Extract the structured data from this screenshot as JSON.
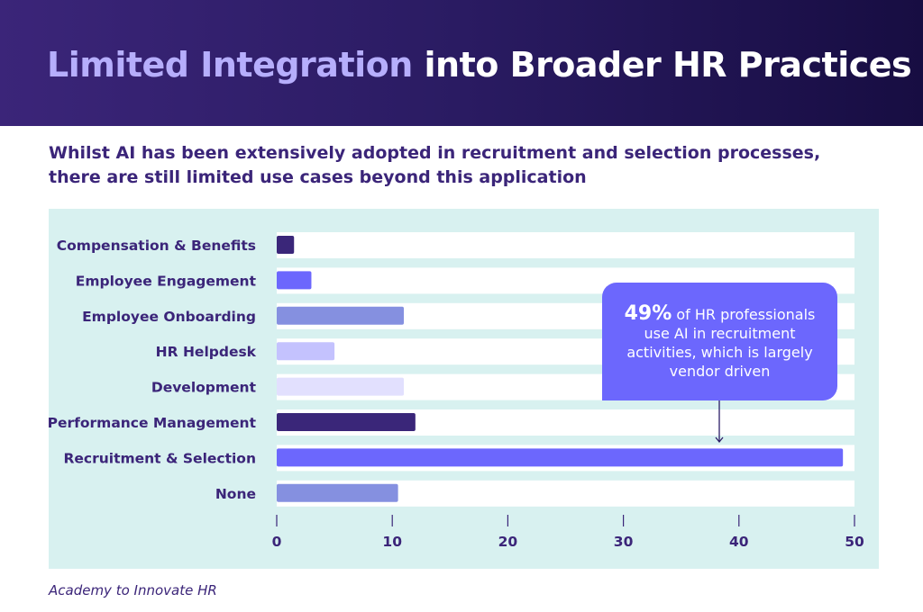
{
  "header": {
    "title_highlight": "Limited Integration",
    "title_rest": " into Broader HR Practices"
  },
  "subtitle_line1": "Whilst AI has been extensively adopted in recruitment and selection processes,",
  "subtitle_line2": "there are still limited use cases beyond this application",
  "source": "Academy to Innovate HR",
  "callout": {
    "value": "49%",
    "line1": " of HR professionals",
    "line2": "use AI in recruitment",
    "line3": "activities, which is largely",
    "line4": "vendor driven"
  },
  "chart_data": {
    "type": "bar",
    "orientation": "horizontal",
    "categories": [
      "Compensation & Benefits",
      "Employee Engagement",
      "Employee Onboarding",
      "HR Helpdesk",
      "Development",
      "Performance Management",
      "Recruitment & Selection",
      "None"
    ],
    "values": [
      1.5,
      3,
      11,
      5,
      11,
      12,
      49,
      10.5
    ],
    "colors": [
      "#3a2679",
      "#6c67fd",
      "#8590e0",
      "#c4c2fe",
      "#e2e0fe",
      "#3a2679",
      "#6c67fd",
      "#8590e0"
    ],
    "xlim": [
      0,
      50
    ],
    "xticks": [
      0,
      10,
      20,
      30,
      40,
      50
    ],
    "grid": false,
    "panel_color": "#d8f1f0",
    "track_color": "#ffffff",
    "label_color": "#3b2579"
  }
}
